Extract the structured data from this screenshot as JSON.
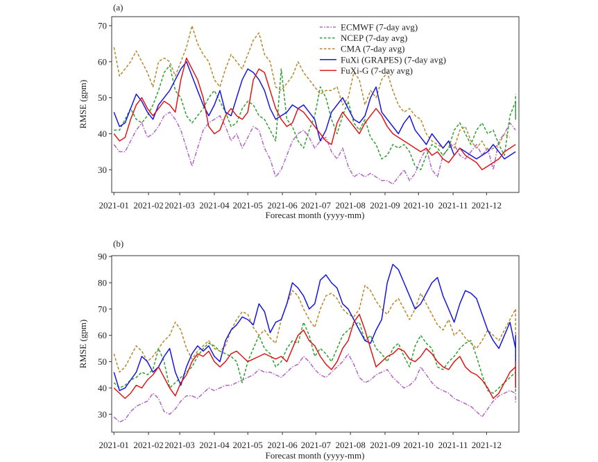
{
  "chart_data": [
    {
      "type": "line",
      "panel_label": "(a)",
      "xlabel": "Forecast month (yyyy-mm)",
      "ylabel": "RMSE (gpm)",
      "ylim": [
        23.7,
        72.5
      ],
      "xlim_days": [
        -2,
        363
      ],
      "yticks": [
        30,
        40,
        50,
        60,
        70
      ],
      "xticks": [
        {
          "label": "2021-01",
          "day": 0
        },
        {
          "label": "2021-02",
          "day": 31
        },
        {
          "label": "2021-03",
          "day": 59
        },
        {
          "label": "2021-04",
          "day": 90
        },
        {
          "label": "2021-05",
          "day": 120
        },
        {
          "label": "2021-06",
          "day": 151
        },
        {
          "label": "2021-07",
          "day": 181
        },
        {
          "label": "2021-08",
          "day": 212
        },
        {
          "label": "2021-09",
          "day": 243
        },
        {
          "label": "2021-10",
          "day": 273
        },
        {
          "label": "2021-11",
          "day": 304
        },
        {
          "label": "2021-12",
          "day": 334
        }
      ],
      "legend_position": "top-right",
      "x_step_days": 5,
      "x_start_day": 0,
      "series": [
        {
          "name": "ECMWF (7-day avg)",
          "color": "#b463c8",
          "style": "dashdot",
          "values": [
            37,
            35,
            35,
            38,
            41,
            43,
            39,
            40,
            42,
            45,
            46,
            44,
            41,
            36,
            31,
            36,
            41,
            43,
            44,
            45,
            42,
            38,
            40,
            36,
            39,
            42,
            41,
            36,
            33,
            28,
            30,
            34,
            38,
            40,
            41,
            39,
            36,
            38,
            39,
            35,
            33,
            36,
            31,
            28,
            29,
            28,
            29,
            28,
            27,
            27,
            26,
            28,
            30,
            27,
            29,
            33,
            36,
            30,
            28,
            34,
            36,
            37,
            34,
            33,
            35,
            37,
            34,
            36,
            30,
            38,
            40,
            43,
            41
          ]
        },
        {
          "name": "NCEP (7-day avg)",
          "color": "#2ca02c",
          "style": "dashed",
          "values": [
            41,
            41,
            44,
            47,
            44,
            43,
            45,
            48,
            52,
            57,
            59,
            52,
            50,
            45,
            43,
            45,
            47,
            50,
            52,
            49,
            46,
            42,
            43,
            47,
            49,
            48,
            45,
            44,
            41,
            38,
            58,
            44,
            42,
            38,
            36,
            41,
            45,
            53,
            50,
            44,
            40,
            45,
            49,
            43,
            41,
            44,
            39,
            37,
            33,
            34,
            37,
            36,
            37,
            35,
            31,
            30,
            34,
            37,
            36,
            34,
            36,
            41,
            43,
            40,
            37,
            41,
            43,
            40,
            41,
            37,
            34,
            45,
            49,
            44,
            48,
            51
          ]
        },
        {
          "name": "CMA (7-day avg)",
          "color": "#b8862b",
          "style": "dashed",
          "values": [
            64,
            56,
            58,
            60,
            63,
            60,
            57,
            53,
            60,
            61,
            60,
            56,
            60,
            64,
            70,
            65,
            62,
            60,
            55,
            53,
            58,
            62,
            60,
            58,
            62,
            66,
            68,
            62,
            60,
            53,
            52,
            54,
            56,
            60,
            57,
            55,
            53,
            51,
            52,
            52,
            53,
            48,
            50,
            57,
            55,
            48,
            52,
            50,
            55,
            57,
            52,
            48,
            46,
            47,
            45,
            44,
            40,
            38,
            37,
            36,
            38,
            36,
            41,
            42,
            38,
            36,
            38,
            35,
            36,
            37,
            40,
            39
          ]
        },
        {
          "name": "FuXi (GRAPES) (7-day avg)",
          "color": "#1515e0",
          "style": "solid",
          "values": [
            46,
            42,
            43,
            47,
            51,
            49,
            46,
            44,
            48,
            50,
            52,
            55,
            58,
            60,
            56,
            52,
            48,
            45,
            48,
            52,
            46,
            45,
            50,
            55,
            58,
            57,
            55,
            52,
            47,
            44,
            45,
            46,
            48,
            47,
            48,
            46,
            44,
            38,
            41,
            46,
            48,
            50,
            47,
            44,
            43,
            45,
            50,
            53,
            46,
            44,
            42,
            40,
            43,
            45,
            41,
            39,
            37,
            40,
            38,
            36,
            38,
            34,
            36,
            35,
            34,
            33,
            34,
            35,
            37,
            35,
            33,
            34,
            35
          ]
        },
        {
          "name": "FuXi-G (7-day avg)",
          "color": "#e01515",
          "style": "solid",
          "values": [
            40,
            38,
            39,
            44,
            48,
            50,
            47,
            45,
            47,
            49,
            48,
            46,
            55,
            61,
            58,
            55,
            50,
            42,
            40,
            41,
            45,
            47,
            45,
            44,
            46,
            55,
            58,
            57,
            52,
            47,
            44,
            42,
            43,
            47,
            46,
            44,
            42,
            40,
            38,
            37,
            43,
            46,
            44,
            42,
            40,
            43,
            45,
            47,
            45,
            42,
            40,
            39,
            38,
            37,
            36,
            35,
            36,
            34,
            35,
            33,
            32,
            34,
            36,
            34,
            33,
            32,
            30,
            31,
            32,
            33,
            35,
            36,
            37
          ]
        }
      ]
    },
    {
      "type": "line",
      "panel_label": "(b)",
      "xlabel": "Forecast month (yyyy-mm)",
      "ylabel": "RMSE (gpm)",
      "ylim": [
        23.2,
        90.3
      ],
      "xlim_days": [
        -2,
        363
      ],
      "yticks": [
        30,
        40,
        50,
        60,
        70,
        80,
        90
      ],
      "xticks": [
        {
          "label": "2021-01",
          "day": 0
        },
        {
          "label": "2021-02",
          "day": 31
        },
        {
          "label": "2021-03",
          "day": 59
        },
        {
          "label": "2021-04",
          "day": 90
        },
        {
          "label": "2021-05",
          "day": 120
        },
        {
          "label": "2021-06",
          "day": 151
        },
        {
          "label": "2021-07",
          "day": 181
        },
        {
          "label": "2021-08",
          "day": 212
        },
        {
          "label": "2021-09",
          "day": 243
        },
        {
          "label": "2021-10",
          "day": 273
        },
        {
          "label": "2021-11",
          "day": 304
        },
        {
          "label": "2021-12",
          "day": 334
        }
      ],
      "x_step_days": 5,
      "x_start_day": 0,
      "series": [
        {
          "name": "ECMWF (7-day avg)",
          "color": "#b463c8",
          "style": "dashdot",
          "values": [
            29,
            27,
            28,
            31,
            33,
            34,
            35,
            38,
            36,
            31,
            30,
            32,
            35,
            37,
            37,
            36,
            38,
            40,
            39,
            40,
            41,
            41,
            42,
            43,
            44,
            45,
            47,
            46,
            46,
            45,
            44,
            46,
            48,
            49,
            52,
            50,
            47,
            45,
            44,
            46,
            48,
            50,
            53,
            49,
            44,
            42,
            43,
            45,
            46,
            47,
            44,
            42,
            40,
            41,
            43,
            48,
            45,
            42,
            40,
            39,
            38,
            36,
            35,
            34,
            33,
            31,
            29,
            32,
            35,
            37,
            38,
            39,
            38,
            37,
            35,
            34
          ]
        },
        {
          "name": "NCEP (7-day avg)",
          "color": "#2ca02c",
          "style": "dashed",
          "values": [
            42,
            40,
            41,
            43,
            44,
            46,
            45,
            47,
            55,
            50,
            40,
            42,
            44,
            46,
            48,
            52,
            55,
            57,
            56,
            54,
            53,
            52,
            50,
            42,
            50,
            55,
            60,
            55,
            53,
            48,
            50,
            55,
            58,
            57,
            65,
            60,
            52,
            55,
            53,
            50,
            55,
            60,
            62,
            64,
            65,
            58,
            60,
            55,
            53,
            50,
            55,
            57,
            52,
            48,
            56,
            60,
            57,
            55,
            48,
            47,
            50,
            52,
            55,
            57,
            58,
            52,
            45,
            39,
            38,
            40,
            42,
            44,
            46,
            45,
            42,
            38
          ]
        },
        {
          "name": "CMA (7-day avg)",
          "color": "#b8862b",
          "style": "dashed",
          "values": [
            53,
            46,
            48,
            52,
            56,
            54,
            50,
            52,
            55,
            58,
            60,
            65,
            62,
            55,
            51,
            54,
            56,
            58,
            55,
            54,
            56,
            62,
            66,
            69,
            68,
            63,
            60,
            62,
            59,
            57,
            66,
            72,
            77,
            75,
            70,
            66,
            63,
            70,
            75,
            76,
            74,
            70,
            68,
            67,
            70,
            79,
            77,
            73,
            70,
            68,
            72,
            74,
            70,
            66,
            70,
            76,
            72,
            68,
            64,
            62,
            66,
            60,
            62,
            59,
            57,
            55,
            58,
            62,
            60,
            58,
            62,
            66,
            70,
            60,
            57,
            50
          ]
        },
        {
          "name": "FuXi (GRAPES) (7-day avg)",
          "color": "#1515e0",
          "style": "solid",
          "values": [
            46,
            39,
            40,
            43,
            46,
            52,
            50,
            46,
            48,
            52,
            55,
            46,
            41,
            48,
            53,
            56,
            54,
            56,
            52,
            50,
            58,
            62,
            64,
            67,
            66,
            64,
            72,
            69,
            61,
            65,
            66,
            72,
            80,
            78,
            75,
            70,
            72,
            81,
            83,
            80,
            78,
            72,
            70,
            66,
            62,
            58,
            57,
            62,
            66,
            80,
            87,
            85,
            80,
            75,
            70,
            72,
            76,
            80,
            82,
            75,
            70,
            65,
            72,
            77,
            76,
            74,
            68,
            62,
            58,
            55,
            60,
            65,
            55,
            60,
            53,
            40
          ]
        },
        {
          "name": "FuXi-G (7-day avg)",
          "color": "#e01515",
          "style": "solid",
          "values": [
            40,
            38,
            36,
            38,
            41,
            40,
            43,
            45,
            48,
            44,
            40,
            37,
            42,
            45,
            50,
            53,
            52,
            54,
            50,
            48,
            50,
            53,
            54,
            52,
            50,
            51,
            52,
            53,
            52,
            51,
            52,
            50,
            55,
            60,
            62,
            58,
            56,
            52,
            49,
            47,
            50,
            55,
            58,
            65,
            68,
            62,
            55,
            48,
            50,
            52,
            53,
            55,
            54,
            51,
            50,
            52,
            55,
            53,
            50,
            48,
            47,
            50,
            52,
            48,
            46,
            45,
            43,
            40,
            36,
            38,
            42,
            46,
            48,
            44,
            50,
            40
          ]
        }
      ]
    }
  ]
}
